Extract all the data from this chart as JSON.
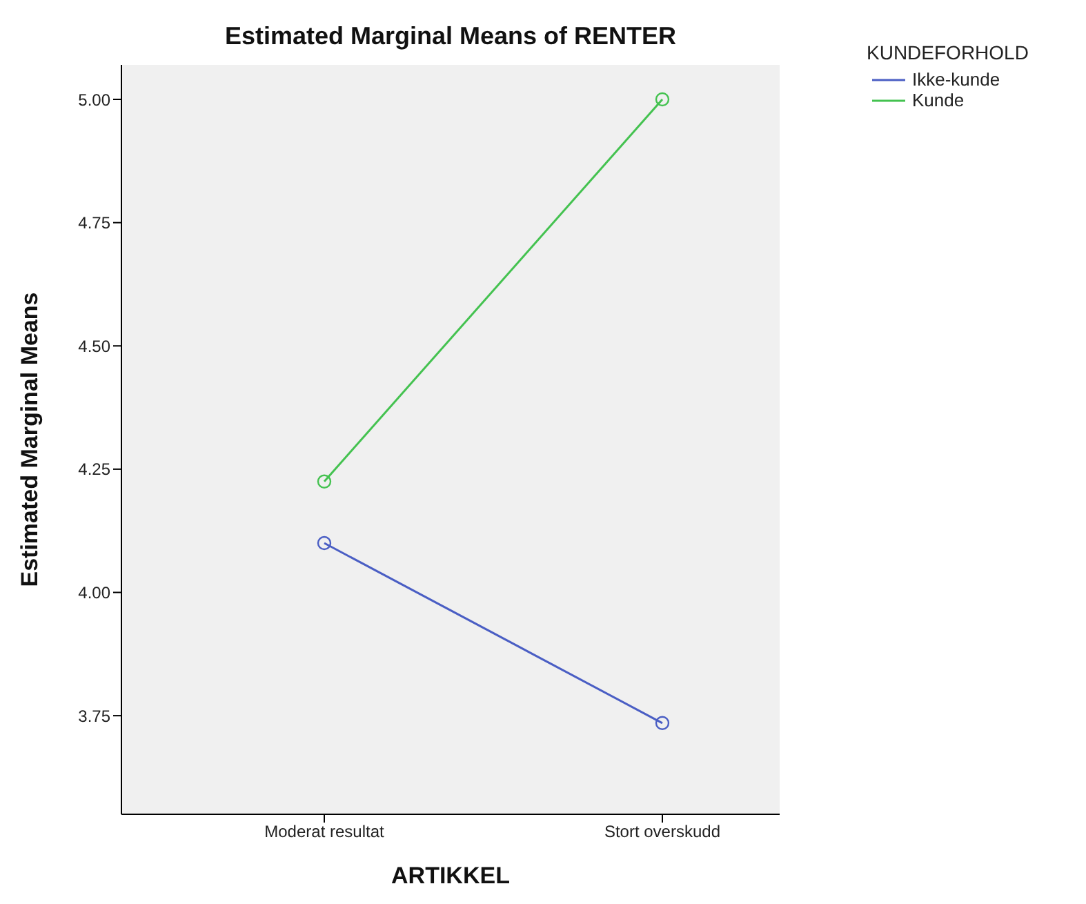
{
  "chart_data": {
    "type": "line",
    "title": "Estimated Marginal Means of RENTER",
    "xlabel": "ARTIKKEL",
    "ylabel": "Estimated Marginal Means",
    "legend_title": "KUNDEFORHOLD",
    "categories": [
      "Moderat resultat",
      "Stort overskudd"
    ],
    "series": [
      {
        "name": "Ikke-kunde",
        "color": "#4a5ec4",
        "values": [
          4.1,
          3.735
        ]
      },
      {
        "name": "Kunde",
        "color": "#44c250",
        "values": [
          4.225,
          5.0
        ]
      }
    ],
    "ylim": [
      3.55,
      5.07
    ],
    "yticks": [
      3.75,
      {
        "value": 4,
        "label": "4.00"
      },
      4.25,
      {
        "value": 4.5,
        "label": "4.50"
      },
      4.75,
      {
        "value": 5,
        "label": "5.00"
      }
    ],
    "grid": false,
    "legend": "top right",
    "marker": "circle",
    "line_style": "solid"
  }
}
